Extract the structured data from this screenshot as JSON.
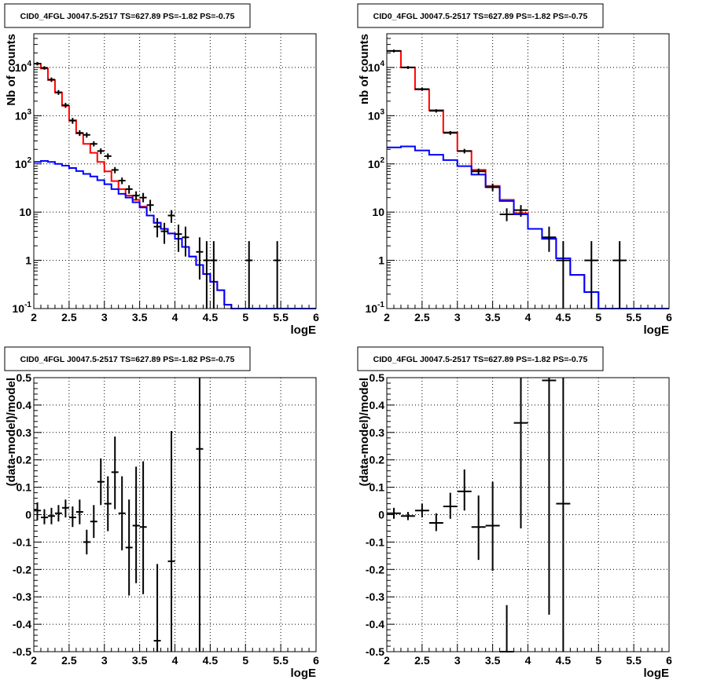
{
  "chart_data": [
    {
      "type": "line",
      "title": "CID0_4FGL J0047.5-2517 TS=627.89 PS=-1.82 PS=-0.75",
      "xlabel": "logE",
      "ylabel": "Nb of counts",
      "log_y": true,
      "xlim": [
        2,
        6
      ],
      "ylim": [
        0.1,
        50000
      ],
      "grid": true,
      "x_ticks": [
        "2",
        "2.5",
        "3",
        "3.5",
        "4",
        "4.5",
        "5",
        "5.5",
        "6"
      ],
      "y_ticks": [
        {
          "value": 0.1,
          "base": "10",
          "exp": "-1"
        },
        {
          "value": 1,
          "label": "1"
        },
        {
          "value": 10,
          "label": "10"
        },
        {
          "value": 100,
          "base": "10",
          "exp": "2"
        },
        {
          "value": 1000,
          "base": "10",
          "exp": "3"
        },
        {
          "value": 10000,
          "base": "10",
          "exp": "4"
        }
      ],
      "series": [
        {
          "color": "#ff0000",
          "kind": "hist",
          "bin_edges": [
            2.0,
            2.1,
            2.2,
            2.3,
            2.4,
            2.5,
            2.6,
            2.7,
            2.8,
            2.9,
            3.0,
            3.1,
            3.2,
            3.3,
            3.4,
            3.5,
            3.6,
            3.7,
            3.8,
            3.9,
            4.0,
            4.1,
            4.2,
            4.3,
            4.4,
            4.5,
            4.6,
            4.7,
            4.8,
            4.9,
            5.0,
            5.1,
            5.2,
            5.3,
            5.4,
            5.5,
            5.6,
            5.7,
            5.8,
            5.9,
            6.0
          ],
          "values": [
            12000,
            9500,
            5500,
            3000,
            1600,
            800,
            430,
            260,
            170,
            110,
            70,
            44,
            30,
            22,
            18,
            13,
            8.5,
            6,
            4.5,
            3.6,
            2.8,
            1.9,
            1.2,
            0.8,
            0.52,
            0.36,
            0.24,
            0.12,
            0.1,
            0.1,
            0.1,
            0.1,
            0.1,
            0.1,
            0.1,
            0.1,
            0.1,
            0.1,
            0.1,
            0.1
          ]
        },
        {
          "color": "#0000ff",
          "kind": "hist",
          "bin_edges": [
            2.0,
            2.1,
            2.2,
            2.3,
            2.4,
            2.5,
            2.6,
            2.7,
            2.8,
            2.9,
            3.0,
            3.1,
            3.2,
            3.3,
            3.4,
            3.5,
            3.6,
            3.7,
            3.8,
            3.9,
            4.0,
            4.1,
            4.2,
            4.3,
            4.4,
            4.5,
            4.6,
            4.7,
            4.8,
            4.9,
            5.0,
            5.1,
            5.2,
            5.3,
            5.4,
            5.5,
            5.6,
            5.7,
            5.8,
            5.9,
            6.0
          ],
          "values": [
            110,
            115,
            110,
            100,
            92,
            82,
            71,
            62,
            55,
            46,
            38,
            30,
            24,
            20,
            16,
            12.5,
            8.5,
            6,
            4.5,
            3.6,
            2.8,
            1.9,
            1.2,
            0.8,
            0.52,
            0.36,
            0.24,
            0.12,
            0.1,
            0.1,
            0.1,
            0.1,
            0.1,
            0.1,
            0.1,
            0.1,
            0.1,
            0.1,
            0.1,
            0.1
          ]
        }
      ],
      "points": [
        {
          "x": 2.05,
          "y": 12000,
          "ylo": 11000,
          "yhi": 13000
        },
        {
          "x": 2.15,
          "y": 9800,
          "ylo": 9000,
          "yhi": 10600
        },
        {
          "x": 2.25,
          "y": 5600,
          "ylo": 5000,
          "yhi": 6200
        },
        {
          "x": 2.35,
          "y": 3050,
          "ylo": 2700,
          "yhi": 3400
        },
        {
          "x": 2.45,
          "y": 1650,
          "ylo": 1450,
          "yhi": 1850
        },
        {
          "x": 2.55,
          "y": 790,
          "ylo": 680,
          "yhi": 900
        },
        {
          "x": 2.65,
          "y": 440,
          "ylo": 380,
          "yhi": 500
        },
        {
          "x": 2.75,
          "y": 400,
          "ylo": 350,
          "yhi": 450
        },
        {
          "x": 2.85,
          "y": 260,
          "ylo": 230,
          "yhi": 295
        },
        {
          "x": 2.95,
          "y": 185,
          "ylo": 160,
          "yhi": 210
        },
        {
          "x": 3.05,
          "y": 145,
          "ylo": 125,
          "yhi": 165
        },
        {
          "x": 3.15,
          "y": 75,
          "ylo": 64,
          "yhi": 86
        },
        {
          "x": 3.25,
          "y": 45,
          "ylo": 38,
          "yhi": 52
        },
        {
          "x": 3.35,
          "y": 30,
          "ylo": 24,
          "yhi": 36
        },
        {
          "x": 3.45,
          "y": 22,
          "ylo": 18,
          "yhi": 27
        },
        {
          "x": 3.55,
          "y": 20,
          "ylo": 16,
          "yhi": 25
        },
        {
          "x": 3.65,
          "y": 14,
          "ylo": 10.5,
          "yhi": 18
        },
        {
          "x": 3.75,
          "y": 5,
          "ylo": 3,
          "yhi": 7.5
        },
        {
          "x": 3.85,
          "y": 4,
          "ylo": 2.2,
          "yhi": 6
        },
        {
          "x": 3.95,
          "y": 8.5,
          "ylo": 6,
          "yhi": 11
        },
        {
          "x": 4.05,
          "y": 3.5,
          "ylo": 1.5,
          "yhi": 5.5
        },
        {
          "x": 4.15,
          "y": 3,
          "ylo": 1.2,
          "yhi": 5
        },
        {
          "x": 4.35,
          "y": 1.5,
          "ylo": 0.4,
          "yhi": 3
        },
        {
          "x": 4.45,
          "y": 1,
          "ylo": 0.1,
          "yhi": 2.5
        },
        {
          "x": 4.55,
          "y": 1,
          "ylo": 0.1,
          "yhi": 2.5
        },
        {
          "x": 5.05,
          "y": 1,
          "ylo": 0.1,
          "yhi": 2.5
        },
        {
          "x": 5.45,
          "y": 1,
          "ylo": 0.1,
          "yhi": 2.5
        }
      ]
    },
    {
      "type": "line",
      "title": "CID0_4FGL J0047.5-2517 TS=627.89 PS=-1.82 PS=-0.75",
      "xlabel": "logE",
      "ylabel": "nb of counts",
      "log_y": true,
      "xlim": [
        2,
        6
      ],
      "ylim": [
        0.1,
        50000
      ],
      "grid": true,
      "x_ticks": [
        "2",
        "2.5",
        "3",
        "3.5",
        "4",
        "4.5",
        "5",
        "5.5",
        "6"
      ],
      "y_ticks": [
        {
          "value": 0.1,
          "base": "10",
          "exp": "-1"
        },
        {
          "value": 1,
          "label": "1"
        },
        {
          "value": 10,
          "label": "10"
        },
        {
          "value": 100,
          "base": "10",
          "exp": "2"
        },
        {
          "value": 1000,
          "base": "10",
          "exp": "3"
        },
        {
          "value": 10000,
          "base": "10",
          "exp": "4"
        }
      ],
      "series": [
        {
          "color": "#ff0000",
          "kind": "hist",
          "bin_edges": [
            2.0,
            2.2,
            2.4,
            2.6,
            2.8,
            3.0,
            3.2,
            3.4,
            3.6,
            3.8,
            4.0,
            4.2,
            4.4,
            4.6,
            4.8,
            5.0,
            5.2,
            5.4,
            5.6,
            5.8,
            6.0
          ],
          "values": [
            22000,
            10000,
            3500,
            1300,
            450,
            185,
            75,
            35,
            18,
            9.5,
            4.5,
            2.8,
            1.1,
            0.5,
            0.22,
            0.1,
            0.1,
            0.1,
            0.1,
            0.1
          ]
        },
        {
          "color": "#0000ff",
          "kind": "hist",
          "bin_edges": [
            2.0,
            2.2,
            2.4,
            2.6,
            2.8,
            3.0,
            3.2,
            3.4,
            3.6,
            3.8,
            4.0,
            4.2,
            4.4,
            4.6,
            4.8,
            5.0,
            5.2,
            5.4,
            5.6,
            5.8,
            6.0
          ],
          "values": [
            220,
            230,
            190,
            155,
            120,
            90,
            60,
            33,
            17,
            9,
            4.5,
            2.8,
            1.1,
            0.5,
            0.22,
            0.1,
            0.1,
            0.1,
            0.1,
            0.1
          ]
        }
      ],
      "points": [
        {
          "x": 2.1,
          "y": 22000,
          "ylo": 20500,
          "yhi": 23500
        },
        {
          "x": 2.3,
          "y": 10000,
          "ylo": 9300,
          "yhi": 10700
        },
        {
          "x": 2.5,
          "y": 3550,
          "ylo": 3300,
          "yhi": 3800
        },
        {
          "x": 2.7,
          "y": 1260,
          "ylo": 1160,
          "yhi": 1360
        },
        {
          "x": 2.9,
          "y": 440,
          "ylo": 400,
          "yhi": 480
        },
        {
          "x": 3.1,
          "y": 185,
          "ylo": 165,
          "yhi": 205
        },
        {
          "x": 3.3,
          "y": 70,
          "ylo": 60,
          "yhi": 80
        },
        {
          "x": 3.5,
          "y": 33,
          "ylo": 27,
          "yhi": 39
        },
        {
          "x": 3.7,
          "y": 9,
          "ylo": 6.5,
          "yhi": 12
        },
        {
          "x": 3.9,
          "y": 11,
          "ylo": 8,
          "yhi": 14
        },
        {
          "x": 4.3,
          "y": 3,
          "ylo": 1.5,
          "yhi": 5
        },
        {
          "x": 4.5,
          "y": 1,
          "ylo": 0.1,
          "yhi": 2.5
        },
        {
          "x": 4.9,
          "y": 1,
          "ylo": 0.1,
          "yhi": 2.5
        },
        {
          "x": 5.3,
          "y": 1,
          "ylo": 0.1,
          "yhi": 2.5
        }
      ]
    },
    {
      "type": "scatter",
      "title": "CID0_4FGL J0047.5-2517 TS=627.89 PS=-1.82 PS=-0.75",
      "xlabel": "logE",
      "ylabel": "(data-model)/model",
      "log_y": false,
      "xlim": [
        2,
        6
      ],
      "ylim": [
        -0.5,
        0.5
      ],
      "grid": true,
      "x_ticks": [
        "2",
        "2.5",
        "3",
        "3.5",
        "4",
        "4.5",
        "5",
        "5.5",
        "6"
      ],
      "y_ticks": [
        {
          "value": -0.5,
          "label": "-0.5"
        },
        {
          "value": -0.4,
          "label": "-0.4"
        },
        {
          "value": -0.3,
          "label": "-0.3"
        },
        {
          "value": -0.2,
          "label": "-0.2"
        },
        {
          "value": -0.1,
          "label": "-0.1"
        },
        {
          "value": 0,
          "label": "0"
        },
        {
          "value": 0.1,
          "label": "0.1"
        },
        {
          "value": 0.2,
          "label": "0.2"
        },
        {
          "value": 0.3,
          "label": "0.3"
        },
        {
          "value": 0.4,
          "label": "0.4"
        },
        {
          "value": 0.5,
          "label": "0.5"
        }
      ],
      "series": [],
      "points": [
        {
          "x": 2.05,
          "y": 0.015,
          "ylo": -0.02,
          "yhi": 0.045,
          "xerr": 0.05
        },
        {
          "x": 2.15,
          "y": -0.01,
          "ylo": -0.035,
          "yhi": 0.02,
          "xerr": 0.05
        },
        {
          "x": 2.25,
          "y": -0.005,
          "ylo": -0.035,
          "yhi": 0.025,
          "xerr": 0.05
        },
        {
          "x": 2.35,
          "y": 0.005,
          "ylo": -0.025,
          "yhi": 0.035,
          "xerr": 0.05
        },
        {
          "x": 2.45,
          "y": 0.025,
          "ylo": -0.01,
          "yhi": 0.055,
          "xerr": 0.05
        },
        {
          "x": 2.55,
          "y": -0.01,
          "ylo": -0.045,
          "yhi": 0.03,
          "xerr": 0.05
        },
        {
          "x": 2.65,
          "y": 0.01,
          "ylo": -0.035,
          "yhi": 0.055,
          "xerr": 0.05
        },
        {
          "x": 2.75,
          "y": -0.1,
          "ylo": -0.145,
          "yhi": -0.055,
          "xerr": 0.05
        },
        {
          "x": 2.85,
          "y": -0.025,
          "ylo": -0.085,
          "yhi": 0.035,
          "xerr": 0.05
        },
        {
          "x": 2.95,
          "y": 0.12,
          "ylo": 0.035,
          "yhi": 0.205,
          "xerr": 0.05
        },
        {
          "x": 3.05,
          "y": 0.04,
          "ylo": -0.06,
          "yhi": 0.14,
          "xerr": 0.05
        },
        {
          "x": 3.15,
          "y": 0.155,
          "ylo": 0.02,
          "yhi": 0.285,
          "xerr": 0.05
        },
        {
          "x": 3.25,
          "y": 0.005,
          "ylo": -0.13,
          "yhi": 0.14,
          "xerr": 0.05
        },
        {
          "x": 3.35,
          "y": -0.12,
          "ylo": -0.295,
          "yhi": 0.055,
          "xerr": 0.05
        },
        {
          "x": 3.45,
          "y": -0.04,
          "ylo": -0.25,
          "yhi": 0.175,
          "xerr": 0.05
        },
        {
          "x": 3.55,
          "y": -0.045,
          "ylo": -0.29,
          "yhi": 0.195,
          "xerr": 0.05
        },
        {
          "x": 3.75,
          "y": -0.46,
          "ylo": -0.5,
          "yhi": -0.18,
          "xerr": 0.05
        },
        {
          "x": 3.95,
          "y": -0.17,
          "ylo": -0.5,
          "yhi": 0.305,
          "xerr": 0.05
        },
        {
          "x": 4.35,
          "y": 0.24,
          "ylo": -0.5,
          "yhi": 0.5,
          "xerr": 0.05
        }
      ]
    },
    {
      "type": "scatter",
      "title": "CID0_4FGL J0047.5-2517 TS=627.89 PS=-1.82 PS=-0.75",
      "xlabel": "logE",
      "ylabel": "(data-model)/model",
      "log_y": false,
      "xlim": [
        2,
        6
      ],
      "ylim": [
        -0.5,
        0.5
      ],
      "grid": true,
      "x_ticks": [
        "2",
        "2.5",
        "3",
        "3.5",
        "4",
        "4.5",
        "5",
        "5.5",
        "6"
      ],
      "y_ticks": [
        {
          "value": -0.5,
          "label": "-0.5"
        },
        {
          "value": -0.4,
          "label": "-0.4"
        },
        {
          "value": -0.3,
          "label": "-0.3"
        },
        {
          "value": -0.2,
          "label": "-0.2"
        },
        {
          "value": -0.1,
          "label": "-0.1"
        },
        {
          "value": 0,
          "label": "0"
        },
        {
          "value": 0.1,
          "label": "0.1"
        },
        {
          "value": 0.2,
          "label": "0.2"
        },
        {
          "value": 0.3,
          "label": "0.3"
        },
        {
          "value": 0.4,
          "label": "0.4"
        },
        {
          "value": 0.5,
          "label": "0.5"
        }
      ],
      "series": [],
      "points": [
        {
          "x": 2.1,
          "y": 0.005,
          "ylo": -0.015,
          "yhi": 0.025,
          "xerr": 0.1
        },
        {
          "x": 2.3,
          "y": -0.005,
          "ylo": -0.02,
          "yhi": 0.01,
          "xerr": 0.1
        },
        {
          "x": 2.5,
          "y": 0.015,
          "ylo": -0.01,
          "yhi": 0.04,
          "xerr": 0.1
        },
        {
          "x": 2.7,
          "y": -0.03,
          "ylo": -0.06,
          "yhi": 0.005,
          "xerr": 0.1
        },
        {
          "x": 2.9,
          "y": 0.03,
          "ylo": -0.015,
          "yhi": 0.08,
          "xerr": 0.1
        },
        {
          "x": 3.1,
          "y": 0.085,
          "ylo": 0.015,
          "yhi": 0.165,
          "xerr": 0.1
        },
        {
          "x": 3.3,
          "y": -0.045,
          "ylo": -0.165,
          "yhi": 0.07,
          "xerr": 0.1
        },
        {
          "x": 3.5,
          "y": -0.04,
          "ylo": -0.205,
          "yhi": 0.12,
          "xerr": 0.1
        },
        {
          "x": 3.7,
          "y": -0.5,
          "ylo": -0.5,
          "yhi": -0.33,
          "xerr": 0.1
        },
        {
          "x": 3.9,
          "y": 0.335,
          "ylo": -0.05,
          "yhi": 0.5,
          "xerr": 0.1
        },
        {
          "x": 4.3,
          "y": 0.49,
          "ylo": -0.365,
          "yhi": 0.5,
          "xerr": 0.1
        },
        {
          "x": 4.5,
          "y": 0.04,
          "ylo": -0.5,
          "yhi": 0.5,
          "xerr": 0.1
        }
      ]
    }
  ]
}
